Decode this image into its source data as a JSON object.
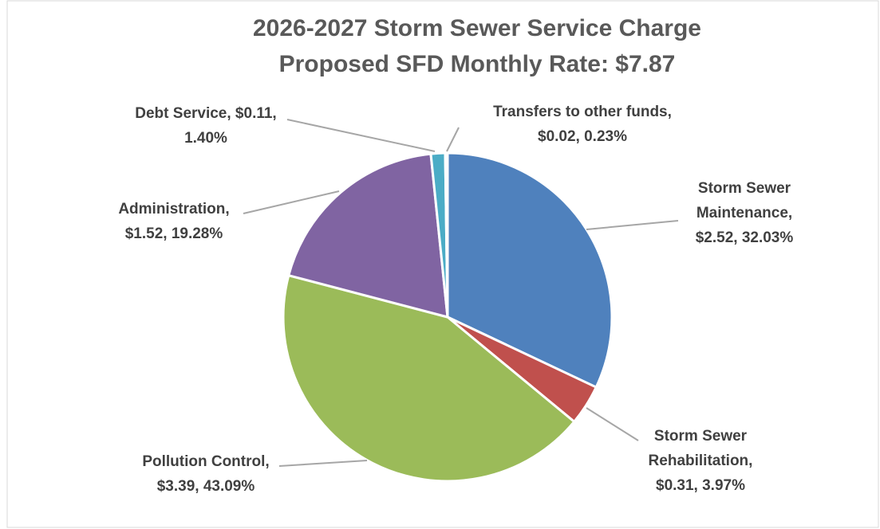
{
  "chart_data": {
    "type": "pie",
    "title": [
      "2026-2027 Storm Sewer Service Charge",
      "Proposed SFD Monthly Rate: $7.87"
    ],
    "values": [
      32.03,
      3.97,
      43.09,
      19.28,
      1.4,
      0.23
    ],
    "value_labels": [
      [
        "Storm Sewer",
        "Maintenance,",
        "$2.52, 32.03%"
      ],
      [
        "Storm Sewer",
        "Rehabilitation,",
        "$0.31, 3.97%"
      ],
      [
        "Pollution Control,",
        "$3.39, 43.09%"
      ],
      [
        "Administration,",
        "$1.52, 19.28%"
      ],
      [
        "Debt Service, $0.11,",
        "1.40%"
      ],
      [
        "Transfers to other funds,",
        "$0.02, 0.23%"
      ]
    ],
    "colors": [
      "#4f81bd",
      "#c0504d",
      "#9bbb59",
      "#8064a2",
      "#4bacc6",
      "#c5e3f0"
    ]
  }
}
